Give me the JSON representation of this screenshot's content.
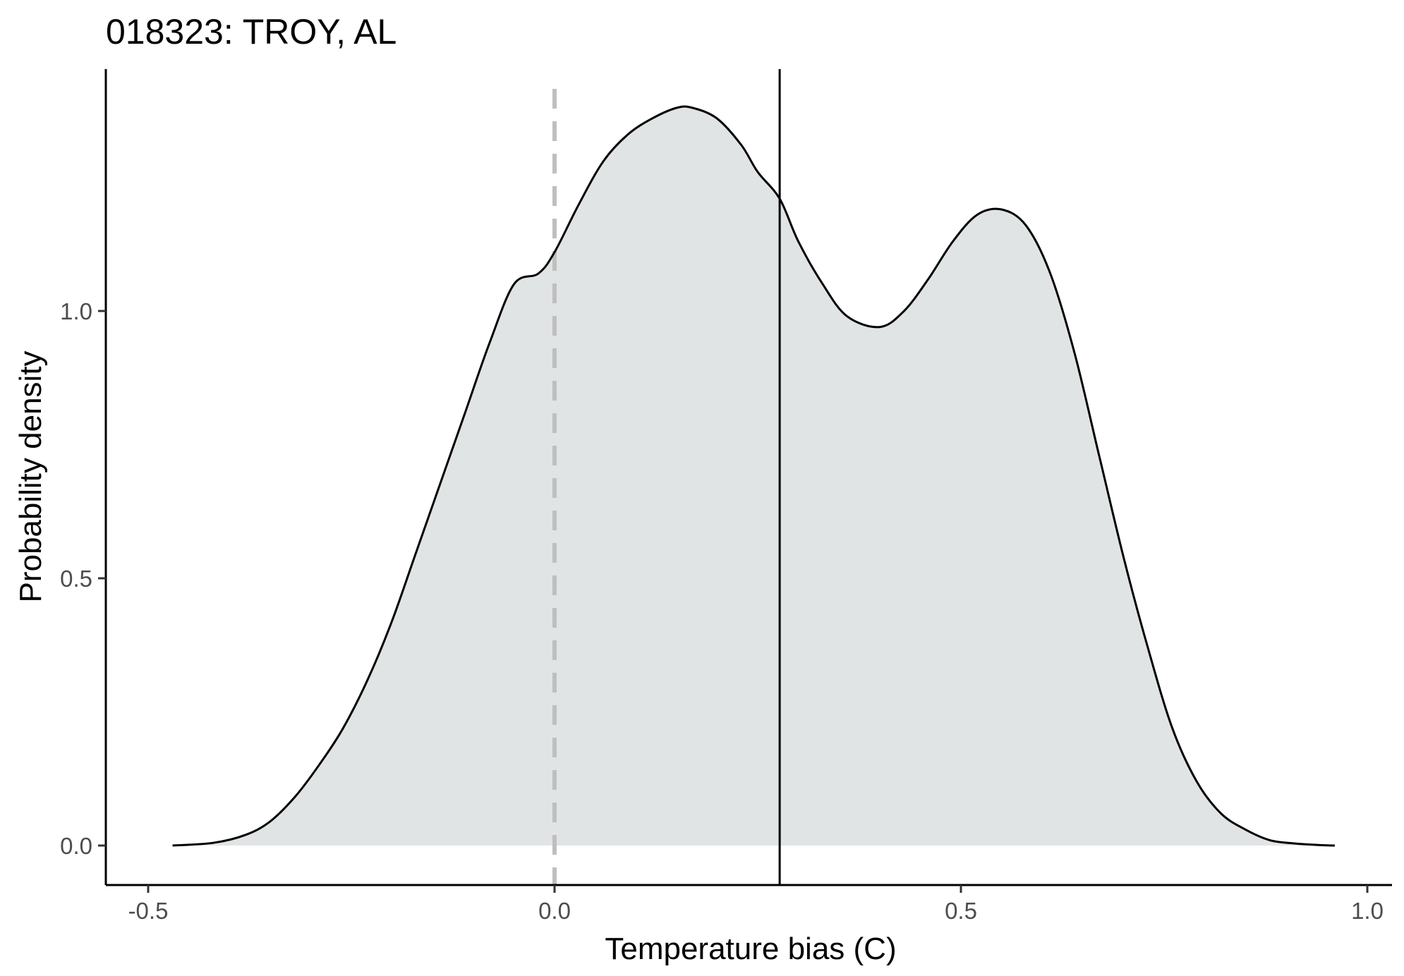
{
  "chart_data": {
    "type": "area",
    "title": "018323: TROY, AL",
    "xlabel": "Temperature bias (C)",
    "ylabel": "Probability density",
    "xlim": [
      -0.5,
      1.0
    ],
    "ylim": [
      0.0,
      1.38
    ],
    "x_ticks": [
      -0.5,
      0.0,
      0.5,
      1.0
    ],
    "x_tick_labels": [
      "-0.5",
      "0.0",
      "0.5",
      "1.0"
    ],
    "y_ticks": [
      0.0,
      0.5,
      1.0
    ],
    "y_tick_labels": [
      "0.0",
      "0.5",
      "1.0"
    ],
    "grid": false,
    "legend": "none",
    "fill_color": "#e1e4e5",
    "line_color": "#000000",
    "reference_line": {
      "x": 0.0,
      "style": "dashed",
      "color": "#bfbfbf"
    },
    "mean_line": {
      "x": 0.277,
      "style": "solid",
      "color": "#000000"
    },
    "series": [
      {
        "x": [
          -0.47,
          -0.42,
          -0.38,
          -0.35,
          -0.32,
          -0.29,
          -0.26,
          -0.23,
          -0.2,
          -0.17,
          -0.14,
          -0.11,
          -0.08,
          -0.05,
          -0.02,
          0.0,
          0.03,
          0.06,
          0.09,
          0.12,
          0.15,
          0.17,
          0.2,
          0.23,
          0.25,
          0.277,
          0.3,
          0.33,
          0.36,
          0.4,
          0.43,
          0.46,
          0.49,
          0.52,
          0.55,
          0.58,
          0.61,
          0.64,
          0.67,
          0.7,
          0.73,
          0.76,
          0.79,
          0.82,
          0.85,
          0.88,
          0.91,
          0.94,
          0.96
        ],
        "y": [
          0.0,
          0.005,
          0.02,
          0.045,
          0.09,
          0.15,
          0.22,
          0.31,
          0.42,
          0.55,
          0.68,
          0.81,
          0.94,
          1.05,
          1.07,
          1.11,
          1.2,
          1.28,
          1.33,
          1.36,
          1.38,
          1.38,
          1.36,
          1.31,
          1.26,
          1.21,
          1.13,
          1.05,
          0.99,
          0.97,
          1.0,
          1.06,
          1.13,
          1.18,
          1.19,
          1.16,
          1.07,
          0.92,
          0.73,
          0.54,
          0.37,
          0.22,
          0.12,
          0.06,
          0.03,
          0.01,
          0.004,
          0.001,
          0.0
        ]
      }
    ]
  }
}
